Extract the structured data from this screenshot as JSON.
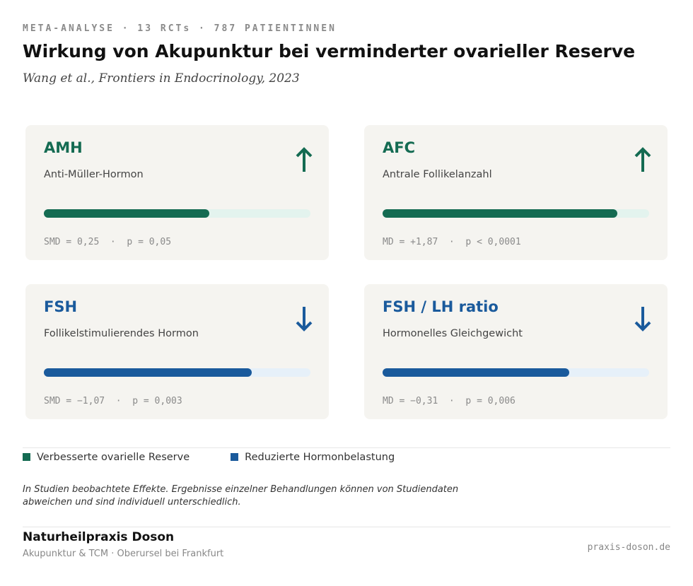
{
  "header": {
    "kicker": "META-ANALYSE · 13 RCTs · 787 PATIENTINNEN",
    "title": "Wirkung von Akupunktur bei verminderter ovarieller Reserve",
    "source": "Wang et al., Frontiers in Endocrinology, 2023"
  },
  "cards": [
    {
      "title": "AMH",
      "subtitle": "Anti-Müller-Hormon",
      "direction": "up",
      "color": "#146b52",
      "track": "#e3f3ee",
      "bar_percent": 62,
      "stat": "SMD = 0,25",
      "p": "p = 0,05"
    },
    {
      "title": "AFC",
      "subtitle": "Antrale Follikelanzahl",
      "direction": "up",
      "color": "#146b52",
      "track": "#e3f3ee",
      "bar_percent": 88,
      "stat": "MD = +1,87",
      "p": "p < 0,0001"
    },
    {
      "title": "FSH",
      "subtitle": "Follikelstimulierendes Hormon",
      "direction": "down",
      "color": "#1a5a9c",
      "track": "#e6f0f9",
      "bar_percent": 78,
      "stat": "SMD = −1,07",
      "p": "p = 0,003"
    },
    {
      "title": "FSH / LH ratio",
      "subtitle": "Hormonelles Gleichgewicht",
      "direction": "down",
      "color": "#1a5a9c",
      "track": "#e6f0f9",
      "bar_percent": 70,
      "stat": "MD = −0,31",
      "p": "p = 0,006"
    }
  ],
  "legend": [
    {
      "label": "Verbesserte ovarielle Reserve",
      "color": "#146b52"
    },
    {
      "label": "Reduzierte Hormonbelastung",
      "color": "#1a5a9c"
    }
  ],
  "note": "In Studien beobachtete Effekte. Ergebnisse einzelner Behandlungen können von Studiendaten abweichen und sind individuell unterschiedlich.",
  "footer": {
    "name": "Naturheilpraxis Doson",
    "tagline": "Akupunktur & TCM · Oberursel bei Frankfurt",
    "url": "praxis-doson.de"
  }
}
